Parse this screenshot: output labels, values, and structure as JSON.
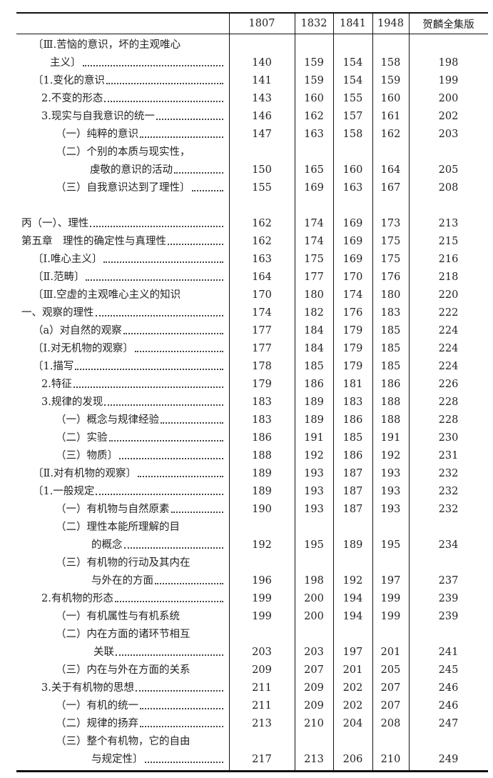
{
  "table": {
    "headers": [
      "",
      "1807",
      "1832",
      "1841",
      "1948",
      "贺麟全集版"
    ],
    "rows": [
      {
        "lines": [
          "〔Ⅲ.苦恼的意识，坏的主观唯心",
          "主义〕"
        ],
        "level": 1,
        "cont": 70,
        "leader": true,
        "values": [
          "140",
          "159",
          "154",
          "158",
          "198"
        ]
      },
      {
        "lines": [
          "〔1.变化的意识"
        ],
        "level": 1,
        "leader": true,
        "values": [
          "141",
          "159",
          "154",
          "159",
          "199"
        ]
      },
      {
        "lines": [
          "2.不变的形态"
        ],
        "level": 2,
        "leader": true,
        "values": [
          "143",
          "160",
          "155",
          "160",
          "200"
        ]
      },
      {
        "lines": [
          "3.现实与自我意识的统一"
        ],
        "level": 2,
        "leader": true,
        "values": [
          "146",
          "162",
          "157",
          "161",
          "202"
        ]
      },
      {
        "lines": [
          "（一）纯粹的意识"
        ],
        "level": 3,
        "leader": true,
        "values": [
          "147",
          "163",
          "158",
          "162",
          "203"
        ]
      },
      {
        "lines": [
          "（二）个别的本质与现实性，",
          "虔敬的意识的活动"
        ],
        "level": 3,
        "cont": 126,
        "leader": true,
        "values": [
          "150",
          "165",
          "160",
          "164",
          "205"
        ]
      },
      {
        "lines": [
          "（三）自我意识达到了理性〕"
        ],
        "level": 3,
        "leader": true,
        "values": [
          "155",
          "169",
          "163",
          "167",
          "208"
        ]
      },
      {
        "lines": [
          ""
        ],
        "level": 0,
        "leader": false,
        "values": [
          "",
          "",
          "",
          "",
          ""
        ]
      },
      {
        "lines": [
          "丙（一）、理性"
        ],
        "level": 0,
        "leader": true,
        "values": [
          "162",
          "174",
          "169",
          "173",
          "213"
        ]
      },
      {
        "lines": [
          "第五章　理性的确定性与真理性"
        ],
        "level": 0,
        "leader": true,
        "values": [
          "162",
          "174",
          "169",
          "175",
          "215"
        ]
      },
      {
        "lines": [
          "〔Ⅰ.唯心主义〕"
        ],
        "level": 1,
        "leader": true,
        "values": [
          "163",
          "175",
          "169",
          "175",
          "216"
        ]
      },
      {
        "lines": [
          "〔Ⅱ.范畴〕"
        ],
        "level": 1,
        "leader": true,
        "values": [
          "164",
          "177",
          "170",
          "176",
          "218"
        ]
      },
      {
        "lines": [
          "〔Ⅲ.空虚的主观唯心主义的知识"
        ],
        "level": 1,
        "leader": false,
        "values": [
          "170",
          "180",
          "174",
          "180",
          "220"
        ]
      },
      {
        "lines": [
          "一、观察的理性"
        ],
        "level": 0,
        "leader": true,
        "values": [
          "174",
          "182",
          "176",
          "183",
          "222"
        ]
      },
      {
        "lines": [
          "（a）对自然的观察"
        ],
        "level": 1,
        "leader": true,
        "values": [
          "177",
          "184",
          "179",
          "185",
          "224"
        ]
      },
      {
        "lines": [
          "〔Ⅰ.对无机物的观察〕"
        ],
        "level": 1,
        "leader": true,
        "values": [
          "177",
          "184",
          "179",
          "185",
          "224"
        ]
      },
      {
        "lines": [
          "〔1.描写"
        ],
        "level": 1,
        "leader": true,
        "values": [
          "178",
          "185",
          "179",
          "185",
          "224"
        ]
      },
      {
        "lines": [
          "2.特征"
        ],
        "level": 2,
        "leader": true,
        "values": [
          "179",
          "186",
          "181",
          "186",
          "226"
        ]
      },
      {
        "lines": [
          "3.规律的发现"
        ],
        "level": 2,
        "leader": true,
        "values": [
          "183",
          "189",
          "183",
          "188",
          "228"
        ]
      },
      {
        "lines": [
          "（一）概念与规律经验"
        ],
        "level": 3,
        "leader": true,
        "values": [
          "183",
          "189",
          "186",
          "188",
          "228"
        ]
      },
      {
        "lines": [
          "（二）实验"
        ],
        "level": 3,
        "leader": true,
        "values": [
          "186",
          "191",
          "185",
          "191",
          "230"
        ]
      },
      {
        "lines": [
          "（三）物质〕"
        ],
        "level": 3,
        "leader": true,
        "values": [
          "188",
          "192",
          "186",
          "192",
          "231"
        ]
      },
      {
        "lines": [
          "〔Ⅱ.对有机物的观察〕"
        ],
        "level": 1,
        "leader": true,
        "values": [
          "189",
          "193",
          "187",
          "193",
          "232"
        ]
      },
      {
        "lines": [
          "〔1.一般规定"
        ],
        "level": 1,
        "leader": true,
        "values": [
          "189",
          "193",
          "187",
          "193",
          "232"
        ]
      },
      {
        "lines": [
          "（一）有机物与自然原素"
        ],
        "level": 3,
        "leader": true,
        "values": [
          "190",
          "193",
          "187",
          "193",
          "232"
        ]
      },
      {
        "lines": [
          "（二）理性本能所理解的目",
          "的概念"
        ],
        "level": 3,
        "cont": 128,
        "leader": true,
        "values": [
          "192",
          "195",
          "189",
          "195",
          "234"
        ]
      },
      {
        "lines": [
          "（三）有机物的行动及其内在",
          "与外在的方面"
        ],
        "level": 3,
        "cont": 128,
        "leader": true,
        "values": [
          "196",
          "198",
          "192",
          "197",
          "237"
        ]
      },
      {
        "lines": [
          "2.有机物的形态"
        ],
        "level": 2,
        "leader": true,
        "values": [
          "199",
          "200",
          "194",
          "199",
          "239"
        ]
      },
      {
        "lines": [
          "（一）有机属性与有机系统"
        ],
        "level": 3,
        "leader": false,
        "values": [
          "199",
          "200",
          "194",
          "199",
          "239"
        ]
      },
      {
        "lines": [
          "（二）内在方面的诸环节相互",
          "关联"
        ],
        "level": 3,
        "cont": 131,
        "leader": true,
        "values": [
          "203",
          "203",
          "197",
          "201",
          "241"
        ]
      },
      {
        "lines": [
          "（三）内在与外在方面的关系"
        ],
        "level": 3,
        "leader": false,
        "values": [
          "209",
          "207",
          "201",
          "205",
          "245"
        ]
      },
      {
        "lines": [
          "3.关于有机物的思想"
        ],
        "level": 2,
        "leader": true,
        "values": [
          "211",
          "209",
          "202",
          "207",
          "246"
        ]
      },
      {
        "lines": [
          "（一）有机的统一"
        ],
        "level": 3,
        "leader": true,
        "values": [
          "211",
          "209",
          "202",
          "207",
          "246"
        ]
      },
      {
        "lines": [
          "（二）规律的扬弃"
        ],
        "level": 3,
        "leader": true,
        "values": [
          "213",
          "210",
          "204",
          "208",
          "247"
        ]
      },
      {
        "lines": [
          "（三）整个有机物，它的自由",
          "与规定性〕"
        ],
        "level": 3,
        "cont": 128,
        "leader": true,
        "values": [
          "217",
          "213",
          "206",
          "210",
          "249"
        ]
      }
    ]
  }
}
